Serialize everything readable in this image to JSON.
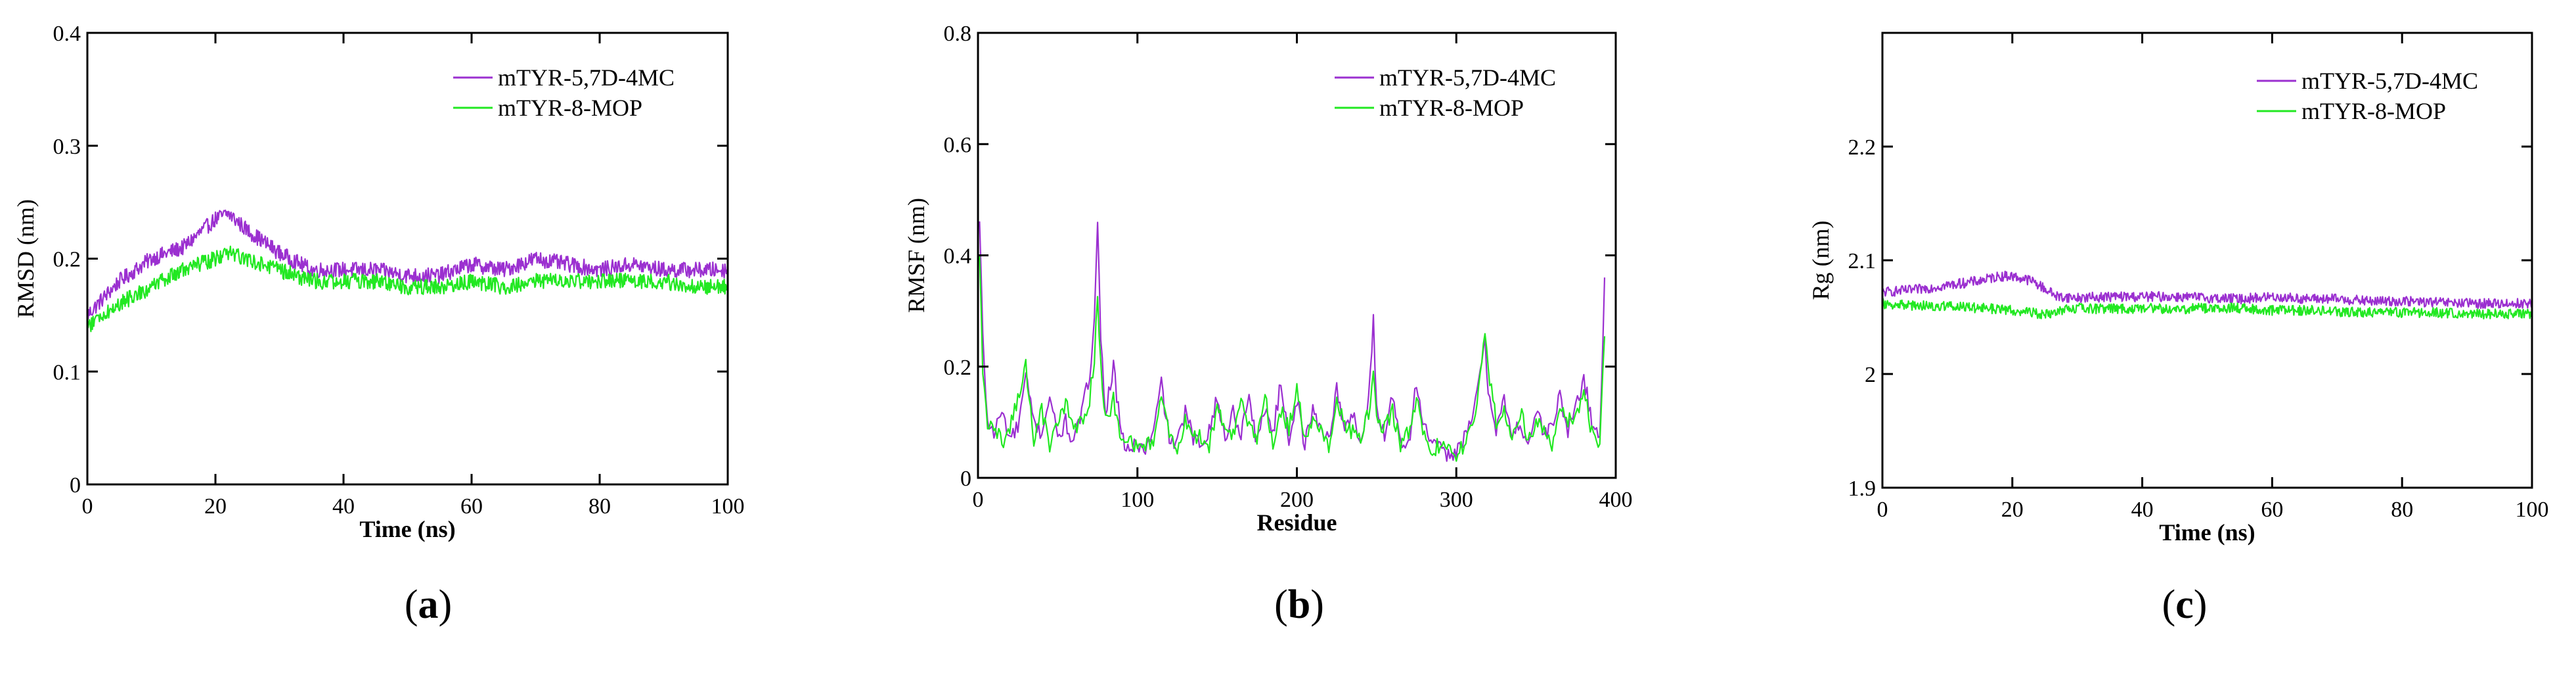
{
  "colors": {
    "series1": "#9b30d0",
    "series2": "#22e822",
    "axis": "#000000"
  },
  "chart_data": [
    {
      "type": "line",
      "panel_label": "a",
      "title": "",
      "xlabel": "Time (ns)",
      "ylabel": "RMSD (nm)",
      "xlim": [
        0,
        100
      ],
      "ylim": [
        0,
        0.4
      ],
      "xticks": [
        0,
        20,
        40,
        60,
        80,
        100
      ],
      "xtick_labels": [
        "0",
        "20",
        "40",
        "60",
        "80",
        "100"
      ],
      "yticks": [
        0,
        0.1,
        0.2,
        0.3,
        0.4
      ],
      "ytick_labels": [
        "0",
        "0.1",
        "0.2",
        "0.3",
        "0.4"
      ],
      "legend_position": "top-right",
      "x": [
        0,
        5,
        10,
        15,
        20,
        22,
        25,
        30,
        35,
        40,
        45,
        50,
        55,
        60,
        65,
        70,
        75,
        80,
        85,
        90,
        95,
        100
      ],
      "series": [
        {
          "name": "mTYR-5,7D-4MC",
          "values": [
            0.15,
            0.18,
            0.2,
            0.21,
            0.235,
            0.24,
            0.225,
            0.205,
            0.19,
            0.19,
            0.19,
            0.185,
            0.185,
            0.195,
            0.19,
            0.2,
            0.195,
            0.19,
            0.195,
            0.19,
            0.19,
            0.19
          ]
        },
        {
          "name": "mTYR-8-MOP",
          "values": [
            0.14,
            0.16,
            0.175,
            0.19,
            0.2,
            0.205,
            0.2,
            0.19,
            0.18,
            0.18,
            0.18,
            0.175,
            0.175,
            0.18,
            0.175,
            0.18,
            0.18,
            0.18,
            0.18,
            0.18,
            0.175,
            0.175
          ]
        }
      ]
    },
    {
      "type": "line",
      "panel_label": "b",
      "title": "",
      "xlabel": "Residue",
      "ylabel": "RMSF (nm)",
      "xlim": [
        0,
        400
      ],
      "ylim": [
        0,
        0.8
      ],
      "xticks": [
        0,
        100,
        200,
        300,
        400
      ],
      "xtick_labels": [
        "0",
        "100",
        "200",
        "300",
        "400"
      ],
      "yticks": [
        0,
        0.2,
        0.4,
        0.6,
        0.8
      ],
      "ytick_labels": [
        "0",
        "0.2",
        "0.4",
        "0.6",
        "0.8"
      ],
      "legend_position": "top-right",
      "x": [
        1,
        3,
        6,
        10,
        15,
        20,
        25,
        30,
        35,
        40,
        45,
        50,
        55,
        60,
        65,
        70,
        73,
        75,
        77,
        80,
        85,
        90,
        95,
        100,
        105,
        110,
        115,
        120,
        125,
        130,
        135,
        140,
        145,
        150,
        155,
        160,
        165,
        170,
        175,
        180,
        185,
        190,
        195,
        200,
        205,
        210,
        215,
        220,
        225,
        230,
        235,
        240,
        245,
        248,
        250,
        255,
        260,
        265,
        270,
        275,
        280,
        285,
        290,
        295,
        300,
        305,
        310,
        315,
        318,
        320,
        325,
        330,
        335,
        340,
        345,
        350,
        355,
        360,
        365,
        370,
        375,
        380,
        385,
        390,
        393
      ],
      "series": [
        {
          "name": "mTYR-5,7D-4MC",
          "values": [
            0.46,
            0.25,
            0.1,
            0.08,
            0.12,
            0.07,
            0.09,
            0.18,
            0.1,
            0.08,
            0.15,
            0.07,
            0.1,
            0.06,
            0.12,
            0.18,
            0.3,
            0.46,
            0.25,
            0.12,
            0.2,
            0.07,
            0.05,
            0.06,
            0.05,
            0.08,
            0.17,
            0.07,
            0.06,
            0.12,
            0.07,
            0.06,
            0.09,
            0.14,
            0.07,
            0.12,
            0.08,
            0.15,
            0.06,
            0.13,
            0.08,
            0.17,
            0.07,
            0.14,
            0.06,
            0.12,
            0.09,
            0.07,
            0.16,
            0.08,
            0.12,
            0.06,
            0.14,
            0.28,
            0.12,
            0.08,
            0.15,
            0.07,
            0.06,
            0.17,
            0.09,
            0.06,
            0.05,
            0.04,
            0.05,
            0.07,
            0.1,
            0.2,
            0.24,
            0.16,
            0.09,
            0.14,
            0.07,
            0.1,
            0.06,
            0.12,
            0.08,
            0.09,
            0.15,
            0.08,
            0.13,
            0.18,
            0.1,
            0.07,
            0.36
          ]
        },
        {
          "name": "mTYR-8-MOP",
          "values": [
            0.4,
            0.2,
            0.08,
            0.1,
            0.06,
            0.09,
            0.14,
            0.2,
            0.07,
            0.12,
            0.06,
            0.09,
            0.14,
            0.08,
            0.1,
            0.14,
            0.22,
            0.32,
            0.2,
            0.1,
            0.14,
            0.06,
            0.07,
            0.05,
            0.06,
            0.07,
            0.14,
            0.08,
            0.05,
            0.1,
            0.08,
            0.07,
            0.06,
            0.12,
            0.09,
            0.08,
            0.13,
            0.1,
            0.07,
            0.15,
            0.06,
            0.12,
            0.09,
            0.16,
            0.07,
            0.1,
            0.08,
            0.06,
            0.13,
            0.1,
            0.08,
            0.07,
            0.12,
            0.18,
            0.1,
            0.09,
            0.12,
            0.06,
            0.08,
            0.14,
            0.07,
            0.05,
            0.06,
            0.05,
            0.04,
            0.06,
            0.09,
            0.18,
            0.27,
            0.2,
            0.1,
            0.12,
            0.08,
            0.12,
            0.07,
            0.1,
            0.09,
            0.06,
            0.13,
            0.1,
            0.11,
            0.16,
            0.08,
            0.06,
            0.25
          ]
        }
      ]
    },
    {
      "type": "line",
      "panel_label": "c",
      "title": "",
      "xlabel": "Time (ns)",
      "ylabel": "Rg (nm)",
      "xlim": [
        0,
        100
      ],
      "ylim": [
        1.9,
        2.3
      ],
      "xticks": [
        0,
        20,
        40,
        60,
        80,
        100
      ],
      "xtick_labels": [
        "0",
        "20",
        "40",
        "60",
        "80",
        "100"
      ],
      "yticks": [
        1.9,
        2.0,
        2.1,
        2.2
      ],
      "ytick_labels": [
        "1.9",
        "2",
        "2.1",
        "2.2"
      ],
      "legend_position": "top-right",
      "x": [
        0,
        5,
        10,
        15,
        18,
        20,
        23,
        25,
        27,
        30,
        35,
        40,
        45,
        50,
        55,
        60,
        65,
        70,
        75,
        80,
        85,
        90,
        95,
        100
      ],
      "series": [
        {
          "name": "mTYR-5,7D-4MC",
          "values": [
            2.072,
            2.074,
            2.078,
            2.082,
            2.086,
            2.086,
            2.082,
            2.075,
            2.068,
            2.067,
            2.068,
            2.068,
            2.068,
            2.067,
            2.066,
            2.068,
            2.066,
            2.066,
            2.064,
            2.064,
            2.063,
            2.062,
            2.062,
            2.062
          ]
        },
        {
          "name": "mTYR-8-MOP",
          "values": [
            2.062,
            2.06,
            2.06,
            2.058,
            2.057,
            2.056,
            2.054,
            2.052,
            2.056,
            2.058,
            2.057,
            2.058,
            2.057,
            2.058,
            2.058,
            2.056,
            2.056,
            2.055,
            2.054,
            2.054,
            2.054,
            2.053,
            2.053,
            2.053
          ]
        }
      ]
    }
  ]
}
